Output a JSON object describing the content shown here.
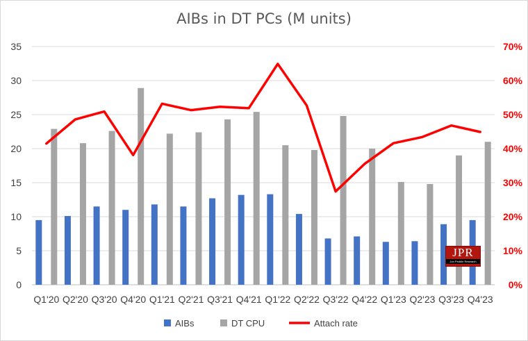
{
  "chart_data": {
    "type": "bar",
    "title": "AIBs in DT PCs (M units)",
    "categories": [
      "Q1'20",
      "Q2'20",
      "Q3'20",
      "Q4'20",
      "Q1'21",
      "Q2'21",
      "Q3'21",
      "Q4'21",
      "Q1'22",
      "Q2'22",
      "Q3'22",
      "Q4'22",
      "Q1'23",
      "Q2'23",
      "Q3'23",
      "Q4'23"
    ],
    "series": [
      {
        "name": "AIBs",
        "type": "bar",
        "axis": "left",
        "color": "#4472c4",
        "values": [
          9.5,
          10.1,
          11.5,
          11.0,
          11.8,
          11.5,
          12.7,
          13.2,
          13.3,
          10.4,
          6.8,
          7.1,
          6.3,
          6.4,
          8.9,
          9.5
        ]
      },
      {
        "name": "DT CPU",
        "type": "bar",
        "axis": "left",
        "color": "#a5a5a5",
        "values": [
          22.9,
          20.8,
          22.6,
          28.9,
          22.2,
          22.4,
          24.3,
          25.4,
          20.5,
          19.8,
          24.8,
          20.0,
          15.1,
          14.8,
          19.0,
          21.0
        ]
      },
      {
        "name": "Attach rate",
        "type": "line",
        "axis": "right",
        "color": "#ff0000",
        "values": [
          0.415,
          0.486,
          0.509,
          0.381,
          0.532,
          0.513,
          0.523,
          0.519,
          0.649,
          0.527,
          0.274,
          0.355,
          0.416,
          0.434,
          0.468,
          0.449
        ]
      }
    ],
    "ylim": [
      0,
      35
    ],
    "yticks": [
      "0",
      "5",
      "10",
      "15",
      "20",
      "25",
      "30",
      "35"
    ],
    "y2lim": [
      0,
      0.7
    ],
    "y2ticks": [
      "0%",
      "10%",
      "20%",
      "30%",
      "40%",
      "50%",
      "60%",
      "70%"
    ],
    "grid": true,
    "legend": "bottom",
    "right_axis_color": "#ff0000"
  },
  "logo": {
    "mark": "JPR",
    "subtitle": "Jon Peddie Research"
  }
}
